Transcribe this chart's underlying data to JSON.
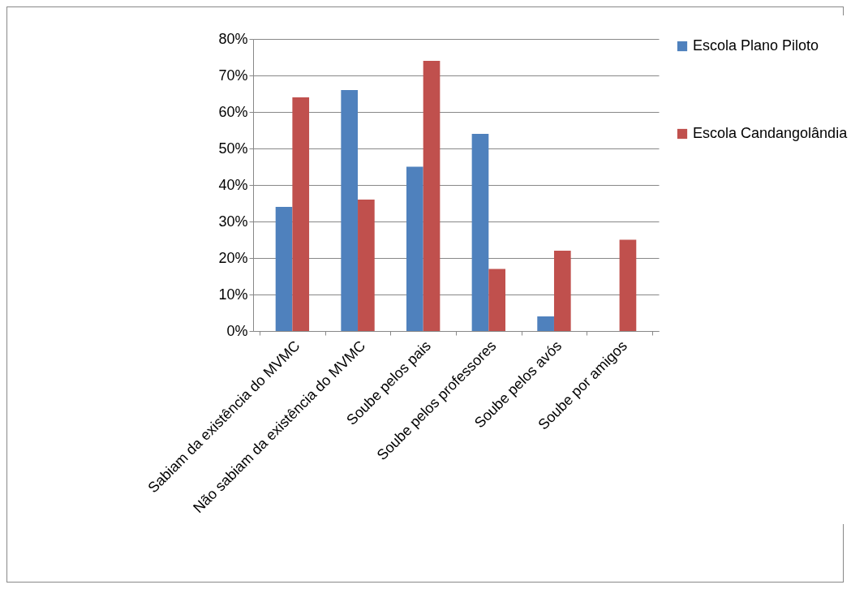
{
  "chart_data": {
    "type": "bar",
    "categories": [
      "Sabiam da existência do MVMC",
      "Não sabiam da existência do MVMC",
      "Soube pelos pais",
      "Soube pelos professores",
      "Soube pelos avós",
      "Soube por amigos"
    ],
    "series": [
      {
        "name": "Escola Plano Piloto",
        "color": "#4f81bd",
        "values": [
          34,
          66,
          45,
          54,
          4,
          null
        ]
      },
      {
        "name": "Escola Candangolândia",
        "color": "#c0504d",
        "values": [
          64,
          36,
          74,
          17,
          22,
          25
        ]
      }
    ],
    "ylim": [
      0,
      80
    ],
    "yticks": [
      {
        "value": 0,
        "label": "0%"
      },
      {
        "value": 10,
        "label": "10%"
      },
      {
        "value": 20,
        "label": "20%"
      },
      {
        "value": 30,
        "label": "30%"
      },
      {
        "value": 40,
        "label": "40%"
      },
      {
        "value": 50,
        "label": "50%"
      },
      {
        "value": 60,
        "label": "60%"
      },
      {
        "value": 70,
        "label": "70%"
      },
      {
        "value": 80,
        "label": "80%"
      }
    ],
    "grid": "y",
    "legend": "right"
  }
}
